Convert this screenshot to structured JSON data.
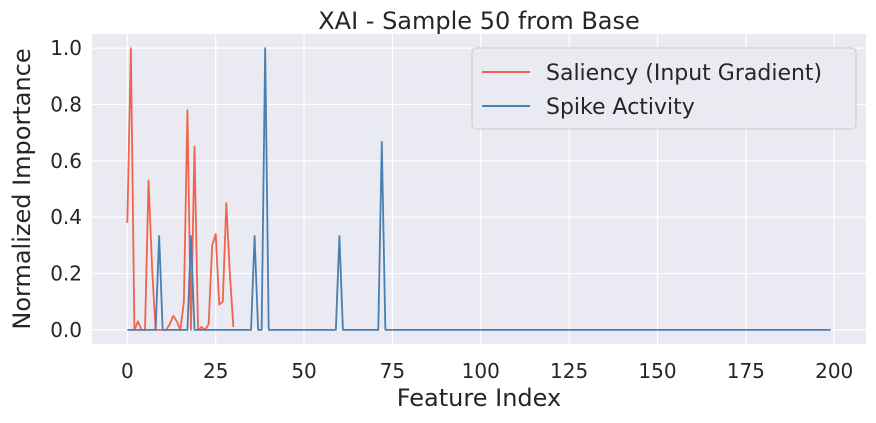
{
  "chart_data": {
    "type": "line",
    "title": "XAI - Sample 50 from Base",
    "xlabel": "Feature Index",
    "ylabel": "Normalized Importance",
    "xlim": [
      -10,
      209
    ],
    "ylim": [
      -0.05,
      1.05
    ],
    "xticks": [
      0,
      25,
      50,
      75,
      100,
      125,
      150,
      175,
      200
    ],
    "yticks": [
      0.0,
      0.2,
      0.4,
      0.6,
      0.8,
      1.0
    ],
    "xtick_labels": [
      "0",
      "25",
      "50",
      "75",
      "100",
      "125",
      "150",
      "175",
      "200"
    ],
    "ytick_labels": [
      "0.0",
      "0.2",
      "0.4",
      "0.6",
      "0.8",
      "1.0"
    ],
    "grid": true,
    "legend_position": "top-right",
    "series": [
      {
        "name": "Saliency (Input Gradient)",
        "color": "#f0644e",
        "x": [
          0,
          1,
          2,
          3,
          4,
          5,
          6,
          7,
          8,
          9,
          10,
          11,
          12,
          13,
          14,
          15,
          16,
          17,
          18,
          19,
          20,
          21,
          22,
          23,
          24,
          25,
          26,
          27,
          28,
          29,
          30
        ],
        "y": [
          0.38,
          1.0,
          0.0,
          0.03,
          0.0,
          0.0,
          0.53,
          0.22,
          0.0,
          0.0,
          0.0,
          0.0,
          0.02,
          0.05,
          0.03,
          0.0,
          0.1,
          0.78,
          0.0,
          0.65,
          0.0,
          0.01,
          0.0,
          0.02,
          0.3,
          0.34,
          0.09,
          0.1,
          0.45,
          0.2,
          0.01
        ]
      },
      {
        "name": "Spike Activity",
        "color": "#4a7fb0",
        "x": [
          0,
          8,
          9,
          10,
          17,
          18,
          19,
          35,
          36,
          37,
          38,
          39,
          40,
          59,
          60,
          61,
          71,
          72,
          73,
          199
        ],
        "y": [
          0.0,
          0.0,
          0.333,
          0.0,
          0.0,
          0.333,
          0.0,
          0.0,
          0.333,
          0.0,
          0.0,
          1.0,
          0.0,
          0.0,
          0.333,
          0.0,
          0.0,
          0.667,
          0.0,
          0.0
        ]
      }
    ]
  }
}
